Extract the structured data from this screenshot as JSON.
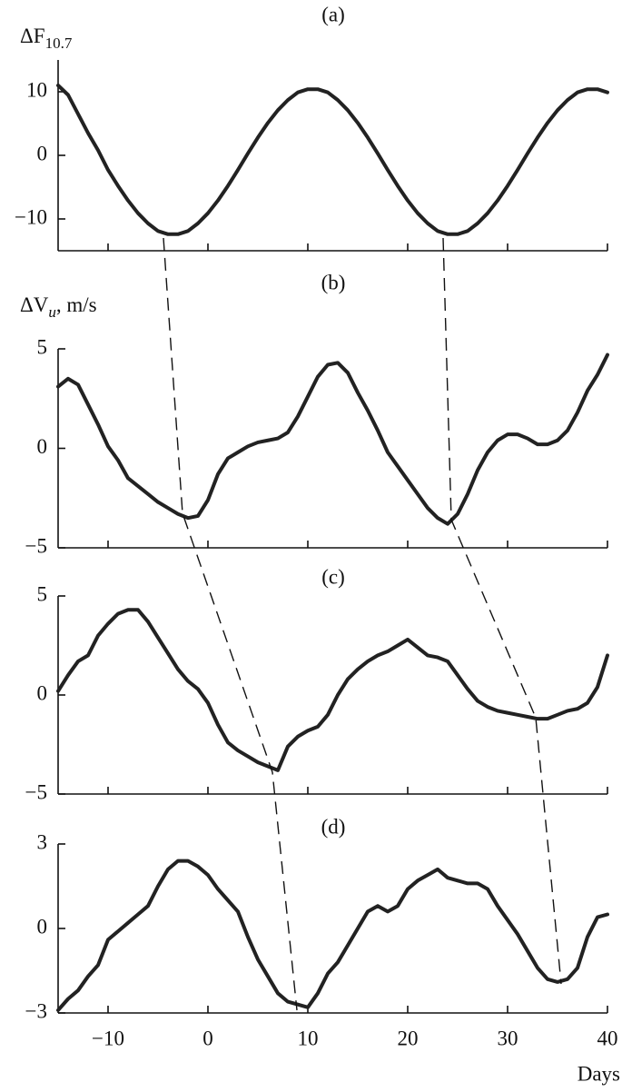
{
  "chart_data": [
    {
      "type": "line",
      "title": "(a)",
      "ylabel": "ΔF",
      "ylabel_sub": "10.7",
      "xlim": [
        -15,
        40
      ],
      "xticks": [
        -10,
        0,
        10,
        20,
        30,
        40
      ],
      "ylim": [
        -15,
        15
      ],
      "yticks": [
        {
          "value": -10,
          "label": "−10"
        },
        0,
        10
      ],
      "x": [
        -15,
        -14,
        -13,
        -12,
        -11,
        -10,
        -9,
        -8,
        -7,
        -6,
        -5,
        -4,
        -3,
        -2,
        -1,
        0,
        1,
        2,
        3,
        4,
        5,
        6,
        7,
        8,
        9,
        10,
        11,
        12,
        13,
        14,
        15,
        16,
        17,
        18,
        19,
        20,
        21,
        22,
        23,
        24,
        25,
        26,
        27,
        28,
        29,
        30,
        31,
        32,
        33,
        34,
        35,
        36,
        37,
        38,
        39,
        40
      ],
      "series": [
        {
          "color": "#222222",
          "values": [
            11,
            9.5,
            6.5,
            3.5,
            0.8,
            -2.3,
            -4.8,
            -7.1,
            -9.1,
            -10.7,
            -11.9,
            -12.4,
            -12.4,
            -11.9,
            -10.7,
            -9.1,
            -7.1,
            -4.8,
            -2.3,
            0.3,
            2.8,
            5.1,
            7.1,
            8.7,
            9.9,
            10.4,
            10.4,
            9.9,
            8.7,
            7.1,
            5.1,
            2.8,
            0.3,
            -2.3,
            -4.8,
            -7.1,
            -9.1,
            -10.7,
            -11.9,
            -12.4,
            -12.4,
            -11.9,
            -10.7,
            -9.1,
            -7.1,
            -4.8,
            -2.3,
            0.3,
            2.8,
            5.1,
            7.1,
            8.7,
            9.9,
            10.4,
            10.4,
            9.9
          ]
        }
      ]
    },
    {
      "type": "line",
      "title": "(b)",
      "ylabel": "ΔV",
      "ylabel_sub": "u",
      "ylabel_suffix": ", m/s",
      "xlim": [
        -15,
        40
      ],
      "xticks": [
        -10,
        0,
        10,
        20,
        30,
        40
      ],
      "ylim": [
        -5,
        5
      ],
      "yticks": [
        {
          "value": -5,
          "label": "−5"
        },
        0,
        5
      ],
      "x": [
        -15,
        -14,
        -13,
        -12,
        -11,
        -10,
        -9,
        -8,
        -7,
        -6,
        -5,
        -4,
        -3,
        -2,
        -1,
        0,
        1,
        2,
        3,
        4,
        5,
        6,
        7,
        8,
        9,
        10,
        11,
        12,
        13,
        14,
        15,
        16,
        17,
        18,
        19,
        20,
        21,
        22,
        23,
        24,
        25,
        26,
        27,
        28,
        29,
        30,
        31,
        32,
        33,
        34,
        35,
        36,
        37,
        38,
        39,
        40
      ],
      "series": [
        {
          "color": "#222222",
          "values": [
            3.1,
            3.5,
            3.2,
            2.2,
            1.2,
            0.1,
            -0.6,
            -1.5,
            -1.9,
            -2.3,
            -2.7,
            -3.0,
            -3.3,
            -3.5,
            -3.4,
            -2.6,
            -1.3,
            -0.5,
            -0.2,
            0.1,
            0.3,
            0.4,
            0.5,
            0.8,
            1.6,
            2.6,
            3.6,
            4.2,
            4.3,
            3.8,
            2.8,
            1.9,
            0.9,
            -0.2,
            -0.9,
            -1.6,
            -2.3,
            -3.0,
            -3.5,
            -3.8,
            -3.3,
            -2.3,
            -1.1,
            -0.2,
            0.4,
            0.7,
            0.7,
            0.5,
            0.2,
            0.2,
            0.4,
            0.9,
            1.8,
            2.9,
            3.7,
            4.7
          ]
        }
      ]
    },
    {
      "type": "line",
      "title": "(c)",
      "xlim": [
        -15,
        40
      ],
      "xticks": [
        -10,
        0,
        10,
        20,
        30,
        40
      ],
      "ylim": [
        -5,
        5
      ],
      "yticks": [
        {
          "value": -5,
          "label": "−5"
        },
        0,
        5
      ],
      "x": [
        -15,
        -14,
        -13,
        -12,
        -11,
        -10,
        -9,
        -8,
        -7,
        -6,
        -5,
        -4,
        -3,
        -2,
        -1,
        0,
        1,
        2,
        3,
        4,
        5,
        6,
        7,
        8,
        9,
        10,
        11,
        12,
        13,
        14,
        15,
        16,
        17,
        18,
        19,
        20,
        21,
        22,
        23,
        24,
        25,
        26,
        27,
        28,
        29,
        30,
        31,
        32,
        33,
        34,
        35,
        36,
        37,
        38,
        39,
        40
      ],
      "series": [
        {
          "color": "#222222",
          "values": [
            0.2,
            1.0,
            1.7,
            2.0,
            3.0,
            3.6,
            4.1,
            4.3,
            4.3,
            3.7,
            2.9,
            2.1,
            1.3,
            0.7,
            0.3,
            -0.4,
            -1.5,
            -2.4,
            -2.8,
            -3.1,
            -3.4,
            -3.6,
            -3.8,
            -2.6,
            -2.1,
            -1.8,
            -1.6,
            -1.0,
            0.0,
            0.8,
            1.3,
            1.7,
            2.0,
            2.2,
            2.5,
            2.8,
            2.4,
            2.0,
            1.9,
            1.7,
            1.0,
            0.3,
            -0.3,
            -0.6,
            -0.8,
            -0.9,
            -1.0,
            -1.1,
            -1.2,
            -1.2,
            -1.0,
            -0.8,
            -0.7,
            -0.4,
            0.4,
            2.0
          ]
        }
      ]
    },
    {
      "type": "line",
      "title": "(d)",
      "xlabel": "Days",
      "xlim": [
        -15,
        40
      ],
      "xticks": [
        {
          "value": -10,
          "label": "−10"
        },
        0,
        10,
        20,
        30,
        40
      ],
      "ylim": [
        -3,
        3
      ],
      "yticks": [
        {
          "value": -3,
          "label": "−3"
        },
        0,
        3
      ],
      "x": [
        -15,
        -14,
        -13,
        -12,
        -11,
        -10,
        -9,
        -8,
        -7,
        -6,
        -5,
        -4,
        -3,
        -2,
        -1,
        0,
        1,
        2,
        3,
        4,
        5,
        6,
        7,
        8,
        9,
        10,
        11,
        12,
        13,
        14,
        15,
        16,
        17,
        18,
        19,
        20,
        21,
        22,
        23,
        24,
        25,
        26,
        27,
        28,
        29,
        30,
        31,
        32,
        33,
        34,
        35,
        36,
        37,
        38,
        39,
        40
      ],
      "series": [
        {
          "color": "#222222",
          "values": [
            -2.9,
            -2.5,
            -2.2,
            -1.7,
            -1.3,
            -0.4,
            -0.1,
            0.2,
            0.5,
            0.8,
            1.5,
            2.1,
            2.4,
            2.4,
            2.2,
            1.9,
            1.4,
            1.0,
            0.6,
            -0.3,
            -1.1,
            -1.7,
            -2.3,
            -2.6,
            -2.7,
            -2.8,
            -2.3,
            -1.6,
            -1.2,
            -0.6,
            0.0,
            0.6,
            0.8,
            0.6,
            0.8,
            1.4,
            1.7,
            1.9,
            2.1,
            1.8,
            1.7,
            1.6,
            1.6,
            1.4,
            0.8,
            0.3,
            -0.2,
            -0.8,
            -1.4,
            -1.8,
            -1.9,
            -1.8,
            -1.4,
            -0.3,
            0.4,
            0.5
          ]
        }
      ]
    }
  ]
}
